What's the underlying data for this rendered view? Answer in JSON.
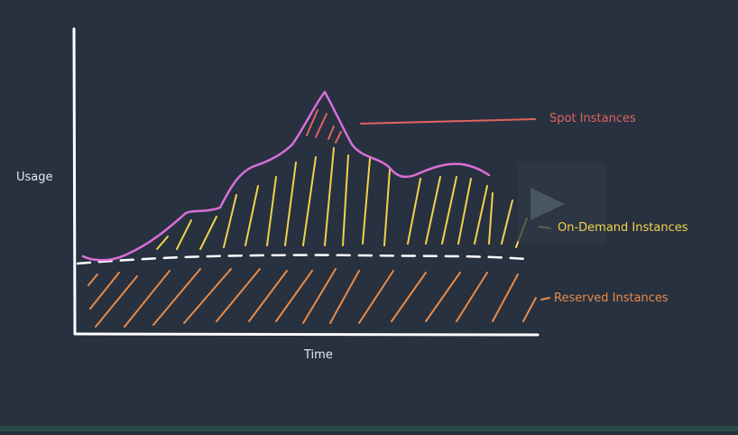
{
  "axes": {
    "y_label": "Usage",
    "x_label": "Time"
  },
  "legend": {
    "spot": "Spot Instances",
    "on_demand": "On-Demand Instances",
    "reserved": "Reserved Instances"
  },
  "colors": {
    "background": "#283140",
    "spot": "#e0635f",
    "on_demand": "#f2d24a",
    "reserved": "#ea8a45",
    "usage_curve": "#d86fd8",
    "baseline": "#ffffff",
    "axis": "#ffffff"
  },
  "overlay": {
    "icon": "play-icon"
  }
}
